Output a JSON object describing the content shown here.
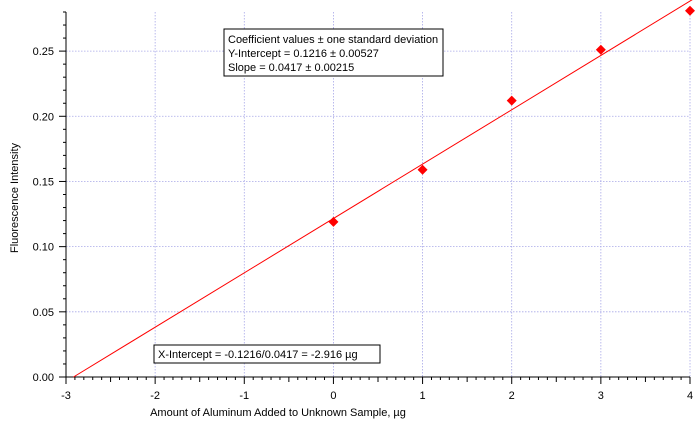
{
  "chart_data": {
    "type": "scatter",
    "title": "",
    "xlabel": "Amount of Aluminum Added to Unknown Sample, µg",
    "ylabel": "Fluorescence Intensity",
    "xlim": [
      -3,
      4
    ],
    "ylim": [
      0,
      0.28
    ],
    "x_ticks": [
      -3,
      -2,
      -1,
      0,
      1,
      2,
      3,
      4
    ],
    "x_tick_labels": [
      "-3",
      "-2",
      "-1",
      "0",
      "1",
      "2",
      "3",
      "4"
    ],
    "y_ticks": [
      0,
      0.05,
      0.1,
      0.15,
      0.2,
      0.25
    ],
    "y_tick_labels": [
      "0.00",
      "0.05",
      "0.10",
      "0.15",
      "0.20",
      "0.25"
    ],
    "grid": true,
    "series": [
      {
        "marker": "diamond",
        "color": "#ff0000",
        "x": [
          0,
          1,
          2,
          3,
          4
        ],
        "y": [
          0.119,
          0.159,
          0.212,
          0.251,
          0.281
        ]
      }
    ],
    "fit_line": {
      "color": "#ff0000",
      "intercept": 0.1216,
      "slope": 0.0417,
      "x_range": [
        -2.916,
        4.3
      ]
    },
    "annotations": {
      "coefficients": [
        "Coefficient values ± one standard deviation",
        "Y-Intercept = 0.1216 ± 0.00527",
        "Slope = 0.0417 ± 0.00215"
      ],
      "x_intercept": "X-Intercept = -0.1216/0.0417 = -2.916 µg"
    }
  }
}
